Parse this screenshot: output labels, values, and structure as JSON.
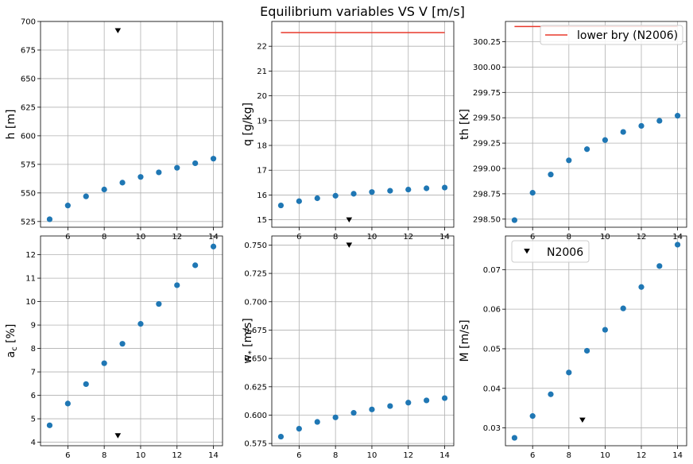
{
  "title": "Equilibrium variables VS V [m/s]",
  "colors": {
    "series": "#1f77b4",
    "ref_line": "#e8382b",
    "ref_point": "#000000",
    "grid": "#b0b0b0"
  },
  "legend": {
    "lower_bry": "lower bry (N2006)",
    "n2006": "N2006"
  },
  "chart_data": [
    {
      "type": "scatter",
      "ylabel": "h [m]",
      "xlim": [
        4.5,
        14.5
      ],
      "ylim": [
        520,
        700
      ],
      "xticks": [
        "6",
        "8",
        "10",
        "12",
        "14"
      ],
      "yticks": [
        "525",
        "550",
        "575",
        "600",
        "625",
        "650",
        "675",
        "700"
      ],
      "x": [
        5,
        6,
        7,
        8,
        9,
        10,
        11,
        12,
        13,
        14
      ],
      "y": [
        527,
        539,
        547,
        553,
        559,
        564,
        568,
        572,
        576,
        580
      ],
      "ref_point": {
        "x": 8.75,
        "y": 692
      }
    },
    {
      "type": "scatter",
      "ylabel": "q [g/kg]",
      "xlim": [
        4.5,
        14.5
      ],
      "ylim": [
        14.7,
        23.0
      ],
      "xticks": [
        "6",
        "8",
        "10",
        "12",
        "14"
      ],
      "yticks": [
        "15",
        "16",
        "17",
        "18",
        "19",
        "20",
        "21",
        "22"
      ],
      "x": [
        5,
        6,
        7,
        8,
        9,
        10,
        11,
        12,
        13,
        14
      ],
      "y": [
        15.58,
        15.75,
        15.87,
        15.97,
        16.05,
        16.12,
        16.17,
        16.22,
        16.27,
        16.3
      ],
      "ref_point": {
        "x": 8.75,
        "y": 15.0
      },
      "ref_line": {
        "x": [
          5,
          14
        ],
        "y": 22.55
      }
    },
    {
      "type": "scatter",
      "ylabel": "th [K]",
      "xlim": [
        4.5,
        14.5
      ],
      "ylim": [
        298.42,
        300.45
      ],
      "xticks": [
        "6",
        "8",
        "10",
        "12",
        "14"
      ],
      "yticks": [
        "298.50",
        "298.75",
        "299.00",
        "299.25",
        "299.50",
        "299.75",
        "300.00",
        "300.25"
      ],
      "x": [
        5,
        6,
        7,
        8,
        9,
        10,
        11,
        12,
        13,
        14
      ],
      "y": [
        298.49,
        298.76,
        298.94,
        299.08,
        299.19,
        299.28,
        299.36,
        299.42,
        299.47,
        299.52
      ],
      "ref_line": {
        "x": [
          5,
          14
        ],
        "y": 300.4
      },
      "legend": "lower_bry"
    },
    {
      "type": "scatter",
      "ylabel": "a_c [%]",
      "xlim": [
        4.5,
        14.5
      ],
      "ylim": [
        3.85,
        12.8
      ],
      "xticks": [
        "6",
        "8",
        "10",
        "12",
        "14"
      ],
      "yticks": [
        "4",
        "5",
        "6",
        "7",
        "8",
        "9",
        "10",
        "11",
        "12"
      ],
      "x": [
        5,
        6,
        7,
        8,
        9,
        10,
        11,
        12,
        13,
        14
      ],
      "y": [
        4.72,
        5.65,
        6.48,
        7.37,
        8.2,
        9.05,
        9.9,
        10.7,
        11.55,
        12.35
      ],
      "ref_point": {
        "x": 8.75,
        "y": 4.28
      }
    },
    {
      "type": "scatter",
      "ylabel": "w* [m/s]",
      "xlim": [
        4.5,
        14.5
      ],
      "ylim": [
        0.573,
        0.758
      ],
      "xticks": [
        "6",
        "8",
        "10",
        "12",
        "14"
      ],
      "yticks": [
        "0.575",
        "0.600",
        "0.625",
        "0.650",
        "0.675",
        "0.700",
        "0.725",
        "0.750"
      ],
      "x": [
        5,
        6,
        7,
        8,
        9,
        10,
        11,
        12,
        13,
        14
      ],
      "y": [
        0.581,
        0.588,
        0.594,
        0.598,
        0.602,
        0.605,
        0.608,
        0.611,
        0.613,
        0.615
      ],
      "ref_point": {
        "x": 8.75,
        "y": 0.75
      }
    },
    {
      "type": "scatter",
      "ylabel": "M [m/s]",
      "xlim": [
        4.5,
        14.5
      ],
      "ylim": [
        0.0255,
        0.0785
      ],
      "xticks": [
        "6",
        "8",
        "10",
        "12",
        "14"
      ],
      "yticks": [
        "0.03",
        "0.04",
        "0.05",
        "0.06",
        "0.07"
      ],
      "x": [
        5,
        6,
        7,
        8,
        9,
        10,
        11,
        12,
        13,
        14
      ],
      "y": [
        0.0275,
        0.033,
        0.0385,
        0.044,
        0.0495,
        0.0548,
        0.0602,
        0.0656,
        0.0709,
        0.0763
      ],
      "ref_point": {
        "x": 8.75,
        "y": 0.032
      },
      "legend": "n2006"
    }
  ]
}
